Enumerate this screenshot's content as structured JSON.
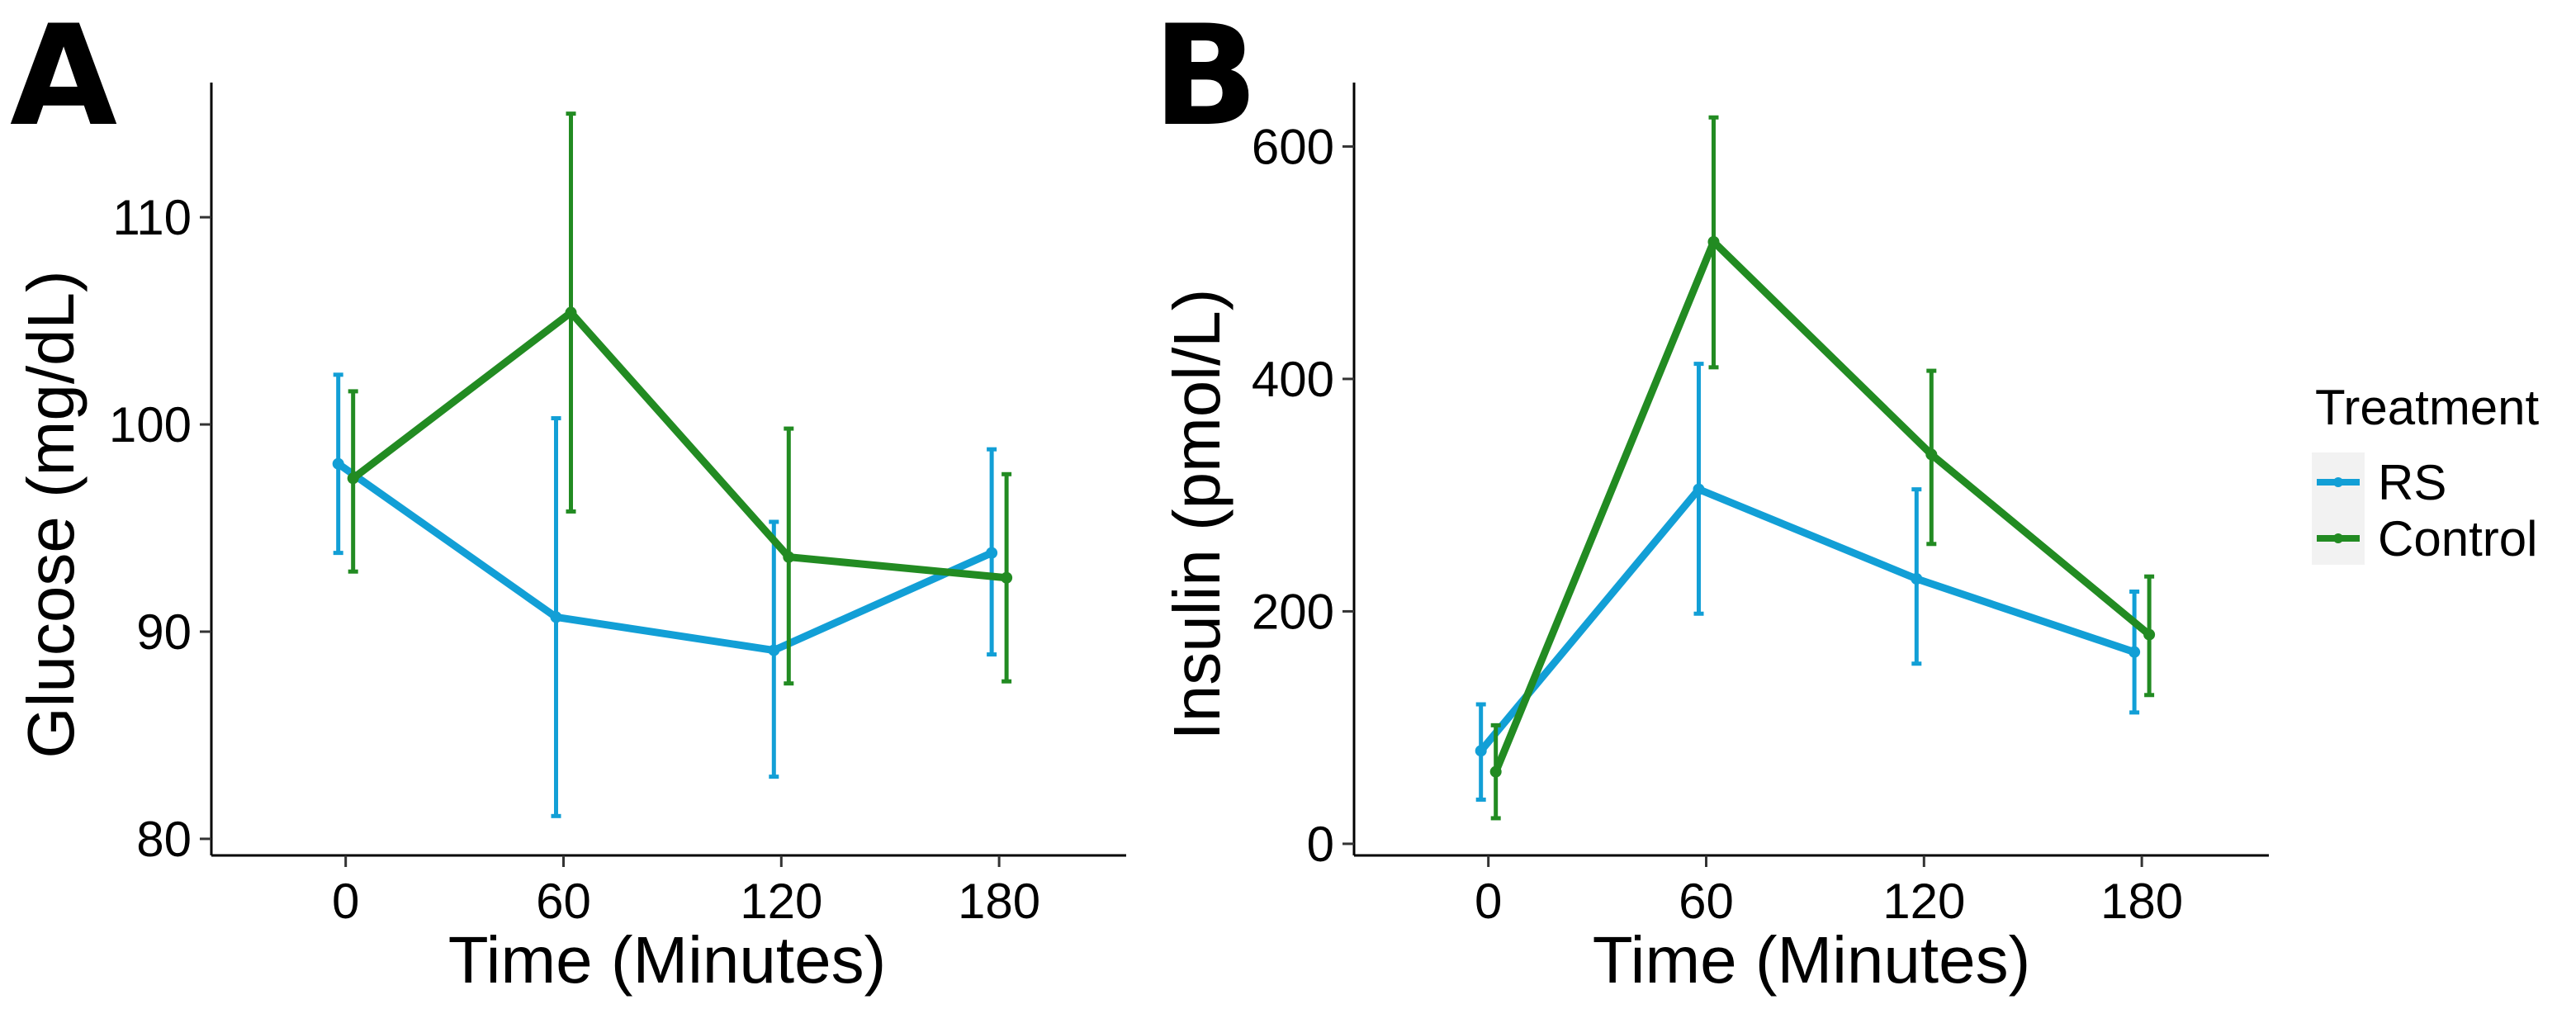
{
  "chart_data": [
    {
      "panel_label": "A",
      "type": "line",
      "xlabel": "Time (Minutes)",
      "ylabel": "Glucose (mg/dL)",
      "x": [
        0,
        60,
        120,
        180
      ],
      "xlim": [
        -37,
        215
      ],
      "ylim": [
        79.2,
        116.5
      ],
      "yticks": [
        80,
        90,
        100,
        110
      ],
      "series": [
        {
          "name": "RS",
          "color": "#129fd6",
          "values": [
            98.1,
            90.7,
            89.1,
            93.8
          ],
          "err_low": [
            93.8,
            81.1,
            83.0,
            88.9
          ],
          "err_high": [
            102.4,
            100.3,
            95.3,
            98.8
          ]
        },
        {
          "name": "Control",
          "color": "#228b22",
          "values": [
            97.4,
            105.4,
            93.6,
            92.6
          ],
          "err_low": [
            92.9,
            95.8,
            87.5,
            87.6
          ],
          "err_high": [
            101.6,
            115.0,
            99.8,
            97.6
          ]
        }
      ]
    },
    {
      "panel_label": "B",
      "type": "line",
      "xlabel": "Time (Minutes)",
      "ylabel": "Insulin (pmol/L)",
      "x": [
        0,
        60,
        120,
        180
      ],
      "xlim": [
        -37,
        215
      ],
      "ylim": [
        -10,
        655
      ],
      "yticks": [
        0,
        200,
        400,
        600
      ],
      "series": [
        {
          "name": "RS",
          "color": "#129fd6",
          "values": [
            80,
            305,
            228,
            165
          ],
          "err_low": [
            38,
            198,
            155,
            113
          ],
          "err_high": [
            120,
            413,
            305,
            217
          ]
        },
        {
          "name": "Control",
          "color": "#228b22",
          "values": [
            62,
            518,
            335,
            180
          ],
          "err_low": [
            22,
            410,
            258,
            128
          ],
          "err_high": [
            102,
            625,
            407,
            230
          ]
        }
      ]
    }
  ],
  "legend": {
    "title": "Treatment",
    "items": [
      {
        "label": "RS",
        "color": "#129fd6"
      },
      {
        "label": "Control",
        "color": "#228b22"
      }
    ]
  }
}
